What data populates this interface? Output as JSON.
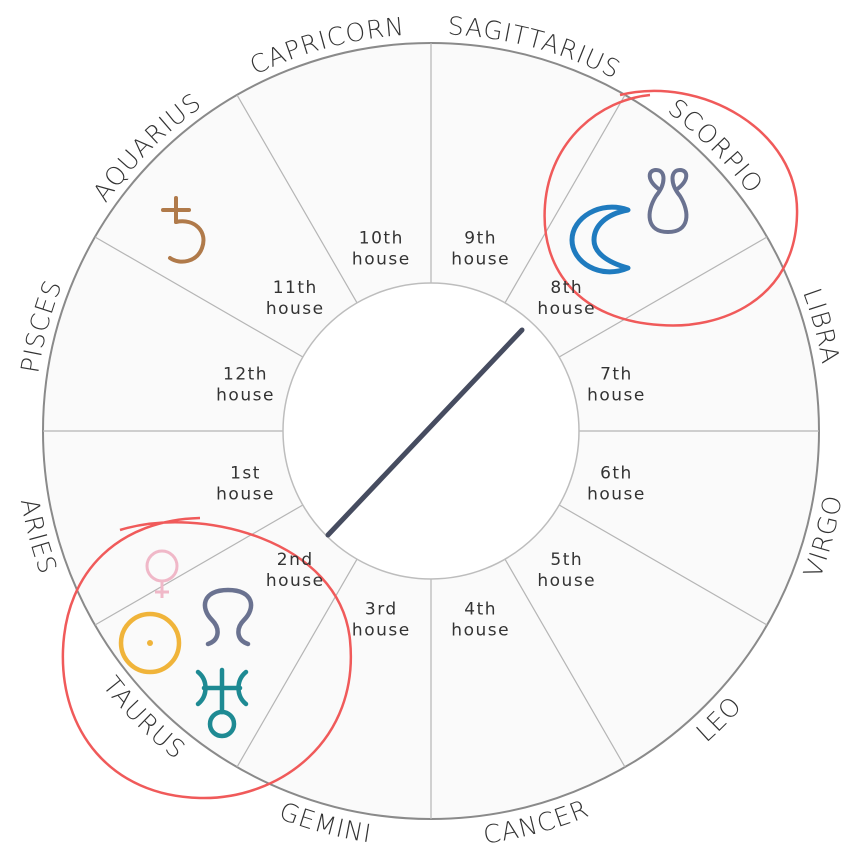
{
  "signs": [
    "ARIES",
    "TAURUS",
    "GEMINI",
    "CANCER",
    "LEO",
    "VIRGO",
    "LIBRA",
    "SCORPIO",
    "SAGITTARIUS",
    "CAPRICORN",
    "AQUARIUS",
    "PISCES"
  ],
  "houses": [
    [
      "1st",
      "house"
    ],
    [
      "2nd",
      "house"
    ],
    [
      "3rd",
      "house"
    ],
    [
      "4th",
      "house"
    ],
    [
      "5th",
      "house"
    ],
    [
      "6th",
      "house"
    ],
    [
      "7th",
      "house"
    ],
    [
      "8th",
      "house"
    ],
    [
      "9th",
      "house"
    ],
    [
      "10th",
      "house"
    ],
    [
      "11th",
      "house"
    ],
    [
      "12th",
      "house"
    ]
  ]
}
